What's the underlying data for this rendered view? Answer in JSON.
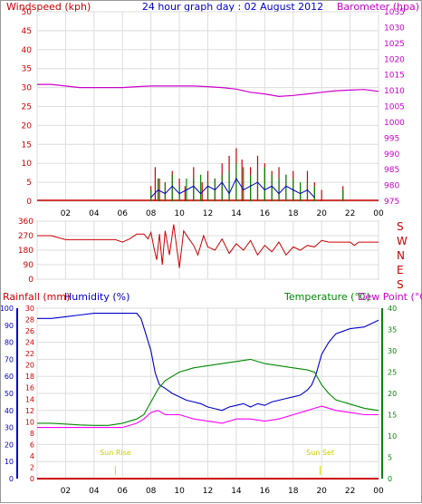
{
  "chart_data": [
    {
      "type": "line",
      "title": "24 hour graph day : 02 August 2012",
      "left_axis_label": "Windspeed (kph)",
      "right_axis_label": "Barometer (hpa)",
      "left_ticks": [
        "0",
        "5",
        "10",
        "15",
        "20",
        "25",
        "30",
        "35",
        "40",
        "45",
        "50"
      ],
      "right_ticks": [
        "975",
        "980",
        "985",
        "990",
        "995",
        "1000",
        "1005",
        "1010",
        "1015",
        "1020",
        "1025",
        "1030",
        "1035"
      ],
      "x_ticks": [
        "02",
        "04",
        "06",
        "08",
        "10",
        "12",
        "14",
        "16",
        "18",
        "20",
        "22",
        "00"
      ],
      "xlim_hours": [
        0,
        24
      ],
      "ylim_left": [
        0,
        50
      ],
      "ylim_right": [
        975,
        1035
      ],
      "series": [
        {
          "key": "barometer",
          "axis": "right",
          "color": "#cc00cc",
          "x": [
            0,
            1,
            2,
            3,
            4,
            5,
            6,
            7,
            8,
            9,
            10,
            11,
            12,
            13,
            14,
            15,
            16,
            17,
            18,
            19,
            20,
            21,
            22,
            23,
            24
          ],
          "y": [
            1012,
            1012,
            1011.5,
            1011,
            1011,
            1011,
            1011,
            1011.3,
            1011.5,
            1011.5,
            1011.5,
            1011.5,
            1011.3,
            1011,
            1010.5,
            1009.5,
            1009,
            1008.2,
            1008.5,
            1009,
            1009.5,
            1010,
            1010.2,
            1010.4,
            1009.8
          ]
        },
        {
          "key": "gust",
          "axis": "left",
          "color": "#cc0000",
          "x": [
            8.0,
            8.3,
            8.6,
            9.0,
            9.5,
            10.0,
            10.4,
            11.0,
            11.6,
            12.0,
            12.5,
            13.0,
            13.5,
            14.0,
            14.4,
            15.0,
            15.5,
            16.0,
            16.5,
            17.0,
            17.5,
            18.0,
            18.5,
            19.0,
            19.5,
            20.0,
            21.5
          ],
          "y": [
            4,
            9,
            6,
            5,
            8,
            6,
            4,
            9,
            5,
            8,
            6,
            10,
            12,
            14,
            11,
            9,
            12,
            10,
            8,
            9,
            7,
            8,
            4,
            8,
            5,
            3,
            4
          ]
        },
        {
          "key": "wind_avg",
          "axis": "left",
          "color": "#008800",
          "x": [
            8.0,
            8.5,
            9.0,
            9.5,
            10.0,
            10.5,
            11.0,
            11.5,
            12.0,
            12.5,
            13.0,
            13.5,
            14.0,
            14.5,
            15.0,
            15.5,
            16.0,
            16.5,
            17.0,
            17.5,
            18.0,
            18.5,
            19.0,
            19.5,
            21.5
          ],
          "y": [
            3,
            6,
            5,
            7,
            4,
            6,
            6,
            7,
            5,
            6,
            7,
            8,
            10,
            9,
            7,
            8,
            9,
            7,
            6,
            7,
            6,
            5,
            5,
            4,
            3
          ]
        },
        {
          "key": "wind_trace",
          "axis": "left",
          "color": "#0000cc",
          "x": [
            8.0,
            8.5,
            9.0,
            9.5,
            10.0,
            10.5,
            11.0,
            11.5,
            12.0,
            12.5,
            13.0,
            13.5,
            14.0,
            14.5,
            15.0,
            15.5,
            16.0,
            16.5,
            17.0,
            17.5,
            18.0,
            18.5,
            19.0,
            19.5
          ],
          "y": [
            1,
            3,
            2,
            4,
            2,
            3,
            4,
            2,
            4,
            3,
            5,
            2,
            6,
            3,
            4,
            5,
            3,
            4,
            2,
            4,
            3,
            2,
            3,
            1
          ]
        }
      ]
    },
    {
      "type": "line",
      "title": "",
      "left_ticks": [
        "0",
        "90",
        "180",
        "270",
        "360"
      ],
      "right_labels": [
        "S",
        "E",
        "N",
        "W",
        "S"
      ],
      "ylim": [
        0,
        360
      ],
      "series": [
        {
          "key": "wind_direction",
          "color": "#cc0000",
          "x": [
            0,
            1,
            2,
            3,
            4,
            5,
            5.5,
            6,
            6.5,
            7,
            7.5,
            7.8,
            8.0,
            8.2,
            8.4,
            8.6,
            8.8,
            9.0,
            9.3,
            9.6,
            10.0,
            10.3,
            10.6,
            11.0,
            11.3,
            11.7,
            12.0,
            12.5,
            13.0,
            13.5,
            14.0,
            14.5,
            15.0,
            15.5,
            16.0,
            16.5,
            17.0,
            17.5,
            18.0,
            18.5,
            19.0,
            19.5,
            20.0,
            20.5,
            21,
            21.5,
            22,
            22.3,
            22.6,
            23,
            24
          ],
          "y": [
            270,
            270,
            245,
            245,
            245,
            245,
            245,
            230,
            250,
            280,
            280,
            250,
            290,
            200,
            120,
            280,
            90,
            300,
            150,
            340,
            70,
            300,
            260,
            210,
            150,
            270,
            200,
            180,
            250,
            160,
            220,
            180,
            240,
            150,
            210,
            170,
            230,
            150,
            200,
            180,
            210,
            200,
            240,
            230,
            230,
            230,
            230,
            210,
            230,
            230,
            230
          ]
        }
      ]
    },
    {
      "type": "line",
      "title": "",
      "rainfall_label": "Rainfall (mm)",
      "humidity_label": "Humidity (%)",
      "temperature_label": "Temperature (°C)",
      "dewpoint_label": "Dew Point (°C)",
      "humidity_ticks": [
        "0",
        "10",
        "20",
        "30",
        "40",
        "50",
        "60",
        "70",
        "80",
        "90",
        "100"
      ],
      "rain_ticks": [
        "0",
        "2",
        "4",
        "6",
        "8",
        "10",
        "12",
        "14",
        "16",
        "18",
        "20",
        "22",
        "24",
        "26",
        "28",
        "30"
      ],
      "temp_ticks": [
        "0",
        "5",
        "10",
        "15",
        "20",
        "25",
        "30",
        "35",
        "40"
      ],
      "annotations": [
        "Sun Rise",
        "Sun Set"
      ],
      "sun_rise_hour": 5.5,
      "sun_set_hour": 19.9,
      "series": [
        {
          "key": "humidity",
          "axis": "humidity",
          "ylim": [
            0,
            100
          ],
          "color": "#0000cc",
          "x": [
            0,
            1,
            2,
            3,
            4,
            5,
            6,
            7,
            7.3,
            7.6,
            8,
            8.3,
            8.6,
            9,
            9.5,
            10,
            10.5,
            11,
            11.5,
            12,
            12.5,
            13,
            13.5,
            14,
            14.5,
            15,
            15.5,
            16,
            16.5,
            17,
            17.5,
            18,
            18.5,
            19,
            19.3,
            19.6,
            20,
            20.5,
            21,
            22,
            23,
            24
          ],
          "y": [
            94,
            94,
            95,
            96,
            97,
            97,
            97,
            97,
            94,
            86,
            75,
            62,
            55,
            53,
            50,
            48,
            46,
            45,
            44,
            42,
            41,
            40,
            42,
            43,
            44,
            42,
            44,
            43,
            45,
            46,
            47,
            48,
            49,
            52,
            55,
            61,
            73,
            80,
            85,
            88,
            89,
            93
          ]
        },
        {
          "key": "temperature",
          "axis": "temperature",
          "ylim": [
            0,
            40
          ],
          "color": "#008800",
          "x": [
            0,
            1,
            2,
            3,
            4,
            5,
            6,
            7,
            7.5,
            8,
            8.5,
            9,
            9.5,
            10,
            11,
            12,
            13,
            14,
            15,
            16,
            17,
            18,
            19,
            19.5,
            20,
            20.5,
            21,
            22,
            23,
            24
          ],
          "y": [
            13,
            13,
            12.8,
            12.6,
            12.5,
            12.5,
            13,
            14,
            15,
            18,
            21,
            23,
            24,
            25,
            26,
            26.5,
            27,
            27.5,
            28,
            27,
            26.5,
            26,
            25.5,
            25,
            22,
            20,
            18.5,
            17.5,
            16.5,
            16
          ]
        },
        {
          "key": "dew_point",
          "axis": "temperature",
          "ylim": [
            0,
            40
          ],
          "color": "#ff00ff",
          "x": [
            0,
            1,
            2,
            3,
            4,
            5,
            6,
            7,
            7.5,
            8,
            8.5,
            9,
            10,
            11,
            12,
            13,
            14,
            15,
            16,
            17,
            18,
            19,
            19.5,
            20,
            21,
            22,
            23,
            24
          ],
          "y": [
            12,
            12,
            12,
            12,
            12,
            12,
            12,
            13,
            14,
            15.5,
            16,
            15,
            15,
            14,
            13.5,
            13,
            14,
            14,
            13.5,
            14,
            15,
            16,
            16.5,
            17,
            16,
            15.5,
            15,
            15
          ]
        },
        {
          "key": "rainfall",
          "axis": "rain",
          "ylim": [
            0,
            30
          ],
          "color": "#cc0000",
          "x": [
            0,
            24
          ],
          "y": [
            0,
            0
          ]
        }
      ]
    }
  ]
}
